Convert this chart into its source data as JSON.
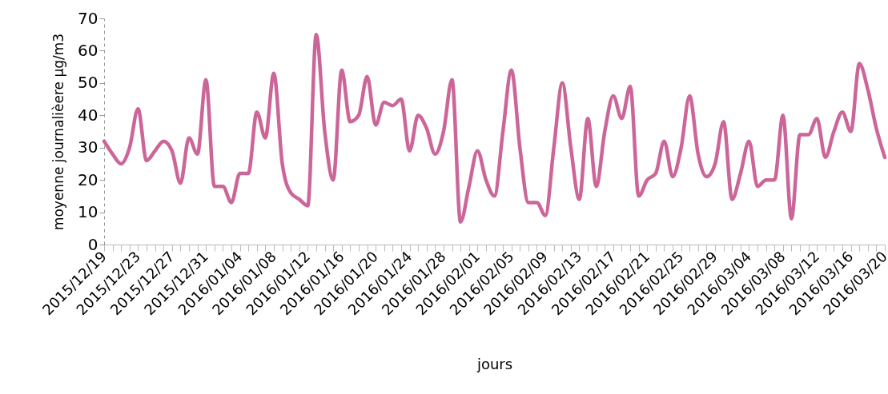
{
  "chart_data": {
    "type": "line",
    "xlabel": "jours",
    "ylabel": "moyenne journalièere µg/m3",
    "categories": [
      "2015/12/19",
      null,
      null,
      null,
      "2015/12/23",
      null,
      null,
      null,
      "2015/12/27",
      null,
      null,
      null,
      "2015/12/31",
      null,
      null,
      null,
      "2016/01/04",
      null,
      null,
      null,
      "2016/01/08",
      null,
      null,
      null,
      "2016/01/12",
      null,
      null,
      null,
      "2016/01/16",
      null,
      null,
      null,
      "2016/01/20",
      null,
      null,
      null,
      "2016/01/24",
      null,
      null,
      null,
      "2016/01/28",
      null,
      null,
      null,
      "2016/02/01",
      null,
      null,
      null,
      "2016/02/05",
      null,
      null,
      null,
      "2016/02/09",
      null,
      null,
      null,
      "2016/02/13",
      null,
      null,
      null,
      "2016/02/17",
      null,
      null,
      null,
      "2016/02/21",
      null,
      null,
      null,
      "2016/02/25",
      null,
      null,
      null,
      "2016/02/29",
      null,
      null,
      null,
      "2016/03/04",
      null,
      null,
      null,
      "2016/03/08",
      null,
      null,
      null,
      "2016/03/12",
      null,
      null,
      null,
      "2016/03/16",
      null,
      null,
      null,
      "2016/03/20"
    ],
    "series": [
      {
        "color": "#cc6699",
        "values": [
          32,
          28,
          25,
          30,
          42,
          26,
          29,
          32,
          29,
          19,
          33,
          28,
          51,
          18,
          18,
          13,
          22,
          22,
          41,
          33,
          53,
          25,
          16,
          14,
          12,
          65,
          35,
          20,
          54,
          38,
          40,
          52,
          37,
          44,
          43,
          45,
          29,
          40,
          36,
          28,
          35,
          51,
          7,
          18,
          29,
          20,
          15,
          35,
          54,
          30,
          13,
          13,
          9,
          30,
          50,
          30,
          14,
          39,
          18,
          35,
          46,
          39,
          49,
          15,
          20,
          22,
          32,
          21,
          30,
          46,
          28,
          21,
          25,
          38,
          14,
          22,
          32,
          18,
          20,
          20,
          40,
          8,
          34,
          34,
          39,
          27,
          35,
          41,
          35,
          56,
          48,
          36,
          27
        ]
      }
    ],
    "ylim": [
      0,
      70
    ],
    "yticks": [
      0,
      10,
      20,
      30,
      40,
      50,
      60,
      70
    ]
  }
}
